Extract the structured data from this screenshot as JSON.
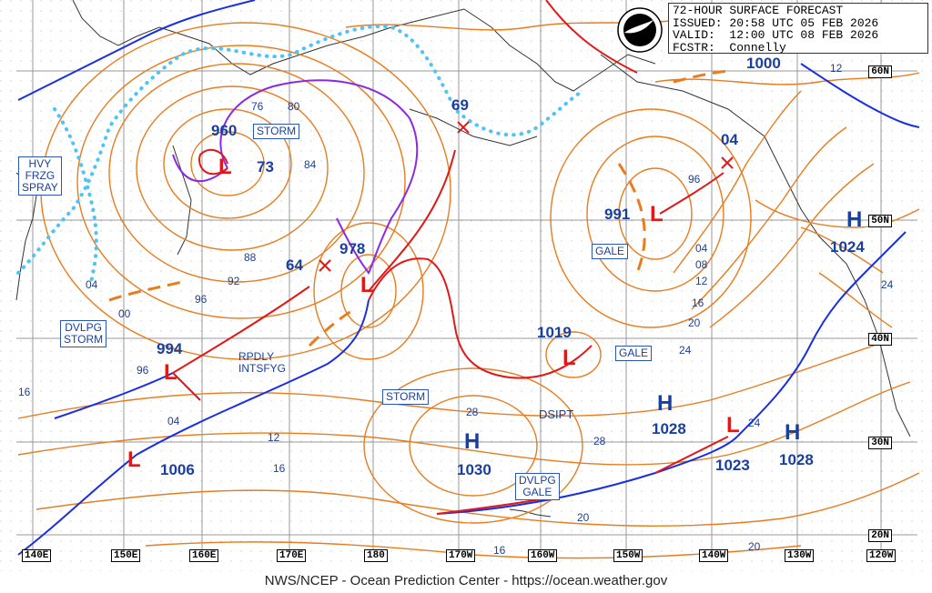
{
  "header": {
    "line1": "72-HOUR SURFACE FORECAST",
    "line2": "ISSUED: 20:58 UTC 05 FEB 2026",
    "line3": "VALID:  12:00 UTC 08 FEB 2026",
    "line4": "FCSTR:  Connelly"
  },
  "footer": "NWS/NCEP - Ocean Prediction Center - https://ocean.weather.gov",
  "logo_icon": "noaa-logo-icon",
  "colors": {
    "isobar": "#e87c1e",
    "coast": "#333333",
    "grid": "#999999",
    "cold": "#1a2fe0",
    "warm": "#e01818",
    "occluded": "#8a2be2",
    "ice": "#4fc3f7",
    "label": "#1a3f9c",
    "track": "#e01818"
  },
  "lat_labels": [
    "60N",
    "50N",
    "40N",
    "30N",
    "20N"
  ],
  "lon_labels": [
    "140E",
    "150E",
    "160E",
    "170E",
    "180",
    "170W",
    "160W",
    "150W",
    "140W",
    "130W",
    "120W"
  ],
  "centers": [
    {
      "type": "L",
      "pressure": "960",
      "label": "STORM"
    },
    {
      "type": "L",
      "pressure": "978"
    },
    {
      "type": "L",
      "pressure": "991",
      "label": "GALE"
    },
    {
      "type": "L",
      "pressure": "994"
    },
    {
      "type": "L",
      "pressure": "1006"
    },
    {
      "type": "L",
      "pressure": "1019",
      "label": "GALE"
    },
    {
      "type": "L",
      "pressure": "1023"
    },
    {
      "type": "H",
      "pressure": "1030"
    },
    {
      "type": "H",
      "pressure": "1028"
    },
    {
      "type": "H",
      "pressure": "1028"
    },
    {
      "type": "H",
      "pressure": "1024"
    }
  ],
  "text_boxes": [
    "HVY\nFRZG\nSPRAY",
    "DVLPG\nSTORM",
    "STORM",
    "STORM",
    "GALE",
    "GALE",
    "DVLPG\nGALE"
  ],
  "annotations": [
    "RPDLY\nINTSFYG",
    "DSIPT"
  ],
  "future_positions": [
    "69",
    "64",
    "04",
    "1000"
  ],
  "isobar_labels": [
    "76",
    "80",
    "84",
    "73",
    "88",
    "92",
    "96",
    "04",
    "00",
    "96",
    "04",
    "08",
    "12",
    "16",
    "20",
    "24",
    "24",
    "24",
    "12",
    "16",
    "16",
    "28",
    "28",
    "20",
    "20",
    "16",
    "12",
    "96",
    "04"
  ]
}
